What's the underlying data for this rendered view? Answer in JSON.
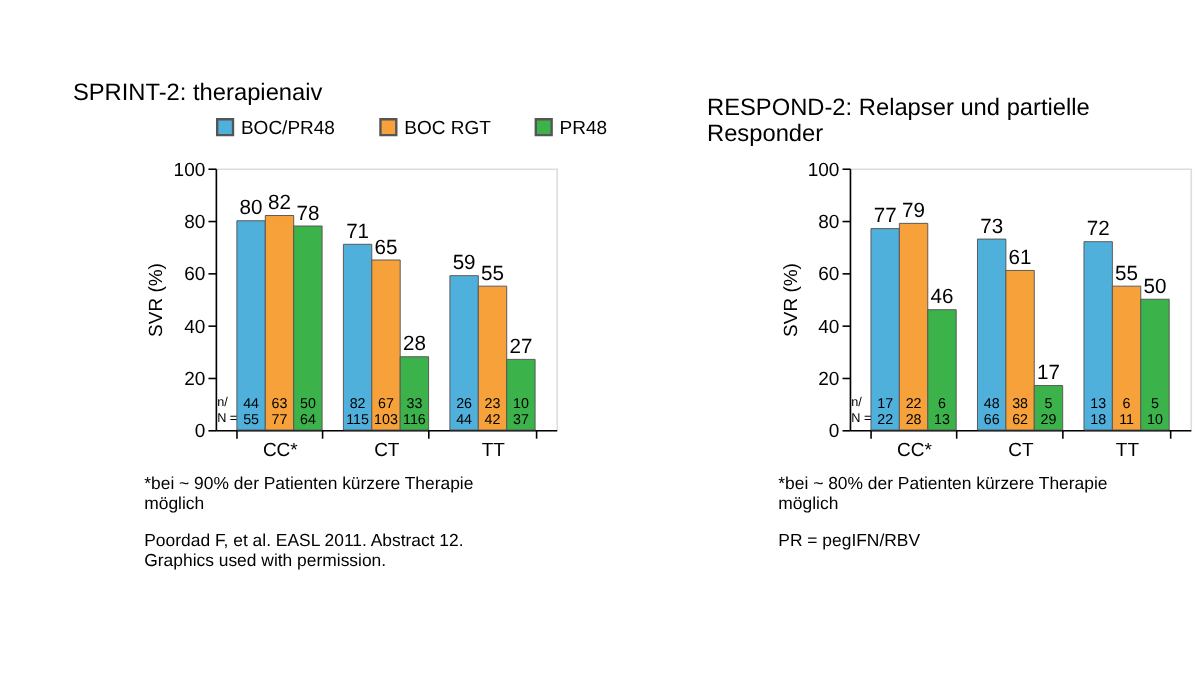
{
  "chart_data": [
    {
      "type": "bar",
      "title": "SPRINT-2: therapienaiv",
      "ylabel": "SVR (%)",
      "categories": [
        "CC*",
        "CT",
        "TT"
      ],
      "series": [
        {
          "name": "BOC/PR48",
          "color": "#4fb0dc",
          "values": [
            80,
            71,
            59
          ]
        },
        {
          "name": "BOC RGT",
          "color": "#f7a13a",
          "values": [
            82,
            65,
            55
          ]
        },
        {
          "name": "PR48",
          "color": "#3cb34a",
          "values": [
            78,
            28,
            27
          ]
        }
      ],
      "ylim": [
        0,
        100
      ],
      "yticks": [
        0,
        20,
        40,
        60,
        80,
        100
      ],
      "data_labels": true,
      "legend": "top",
      "grid": false,
      "annotations": [
        "n/",
        "N =",
        "44",
        "63",
        "50",
        "55",
        "77",
        "64",
        "82",
        "67",
        "33",
        "115",
        "103",
        "116",
        "26",
        "23",
        "10",
        "44",
        "42",
        "37",
        "*bei ~ 90% der Patienten kürzere Therapie möglich",
        "Poordad F, et al. EASL 2011. Abstract 12. Graphics used with permission."
      ]
    },
    {
      "type": "bar",
      "title": "RESPOND-2: Relapser und partielle Responder",
      "ylabel": "SVR (%)",
      "categories": [
        "CC*",
        "CT",
        "TT"
      ],
      "series": [
        {
          "name": "BOC/PR48",
          "color": "#4fb0dc",
          "values": [
            77,
            73,
            72
          ]
        },
        {
          "name": "BOC RGT",
          "color": "#f7a13a",
          "values": [
            79,
            61,
            55
          ]
        },
        {
          "name": "PR48",
          "color": "#3cb34a",
          "values": [
            46,
            17,
            50
          ]
        }
      ],
      "ylim": [
        0,
        100
      ],
      "yticks": [
        0,
        20,
        40,
        60,
        80,
        100
      ],
      "data_labels": true,
      "grid": false,
      "annotations": [
        "n/",
        "N =",
        "17",
        "22",
        "6",
        "22",
        "28",
        "13",
        "48",
        "38",
        "5",
        "66",
        "62",
        "29",
        "13",
        "6",
        "5",
        "18",
        "11",
        "10",
        "*bei ~ 80% der Patienten kürzere Therapie möglich",
        "PR = pegIFN/RBV"
      ]
    }
  ]
}
